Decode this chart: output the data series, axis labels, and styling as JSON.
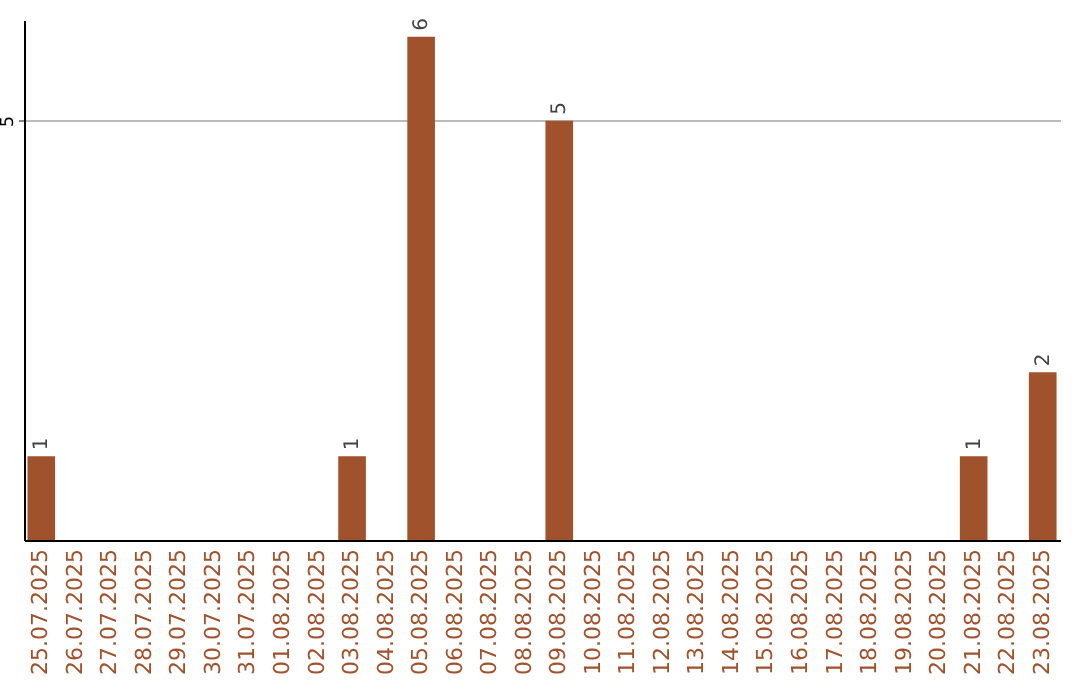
{
  "chart_data": {
    "type": "bar",
    "categories": [
      "25.07.2025",
      "26.07.2025",
      "27.07.2025",
      "28.07.2025",
      "29.07.2025",
      "30.07.2025",
      "31.07.2025",
      "01.08.2025",
      "02.08.2025",
      "03.08.2025",
      "04.08.2025",
      "05.08.2025",
      "06.08.2025",
      "07.08.2025",
      "08.08.2025",
      "09.08.2025",
      "10.08.2025",
      "11.08.2025",
      "12.08.2025",
      "13.08.2025",
      "14.08.2025",
      "15.08.2025",
      "16.08.2025",
      "17.08.2025",
      "18.08.2025",
      "19.08.2025",
      "20.08.2025",
      "21.08.2025",
      "22.08.2025",
      "23.08.2025"
    ],
    "values": [
      1,
      0,
      0,
      0,
      0,
      0,
      0,
      0,
      0,
      1,
      0,
      6,
      0,
      0,
      0,
      5,
      0,
      0,
      0,
      0,
      0,
      0,
      0,
      0,
      0,
      0,
      0,
      1,
      0,
      2
    ],
    "value_labels": [
      "1",
      null,
      null,
      null,
      null,
      null,
      null,
      null,
      null,
      "1",
      null,
      "6",
      null,
      null,
      null,
      "5",
      null,
      null,
      null,
      null,
      null,
      null,
      null,
      null,
      null,
      null,
      null,
      "1",
      null,
      "2"
    ],
    "color": "#a0522d",
    "ylim": [
      0,
      6.2
    ],
    "yticks": [
      5
    ],
    "grid": "y"
  }
}
